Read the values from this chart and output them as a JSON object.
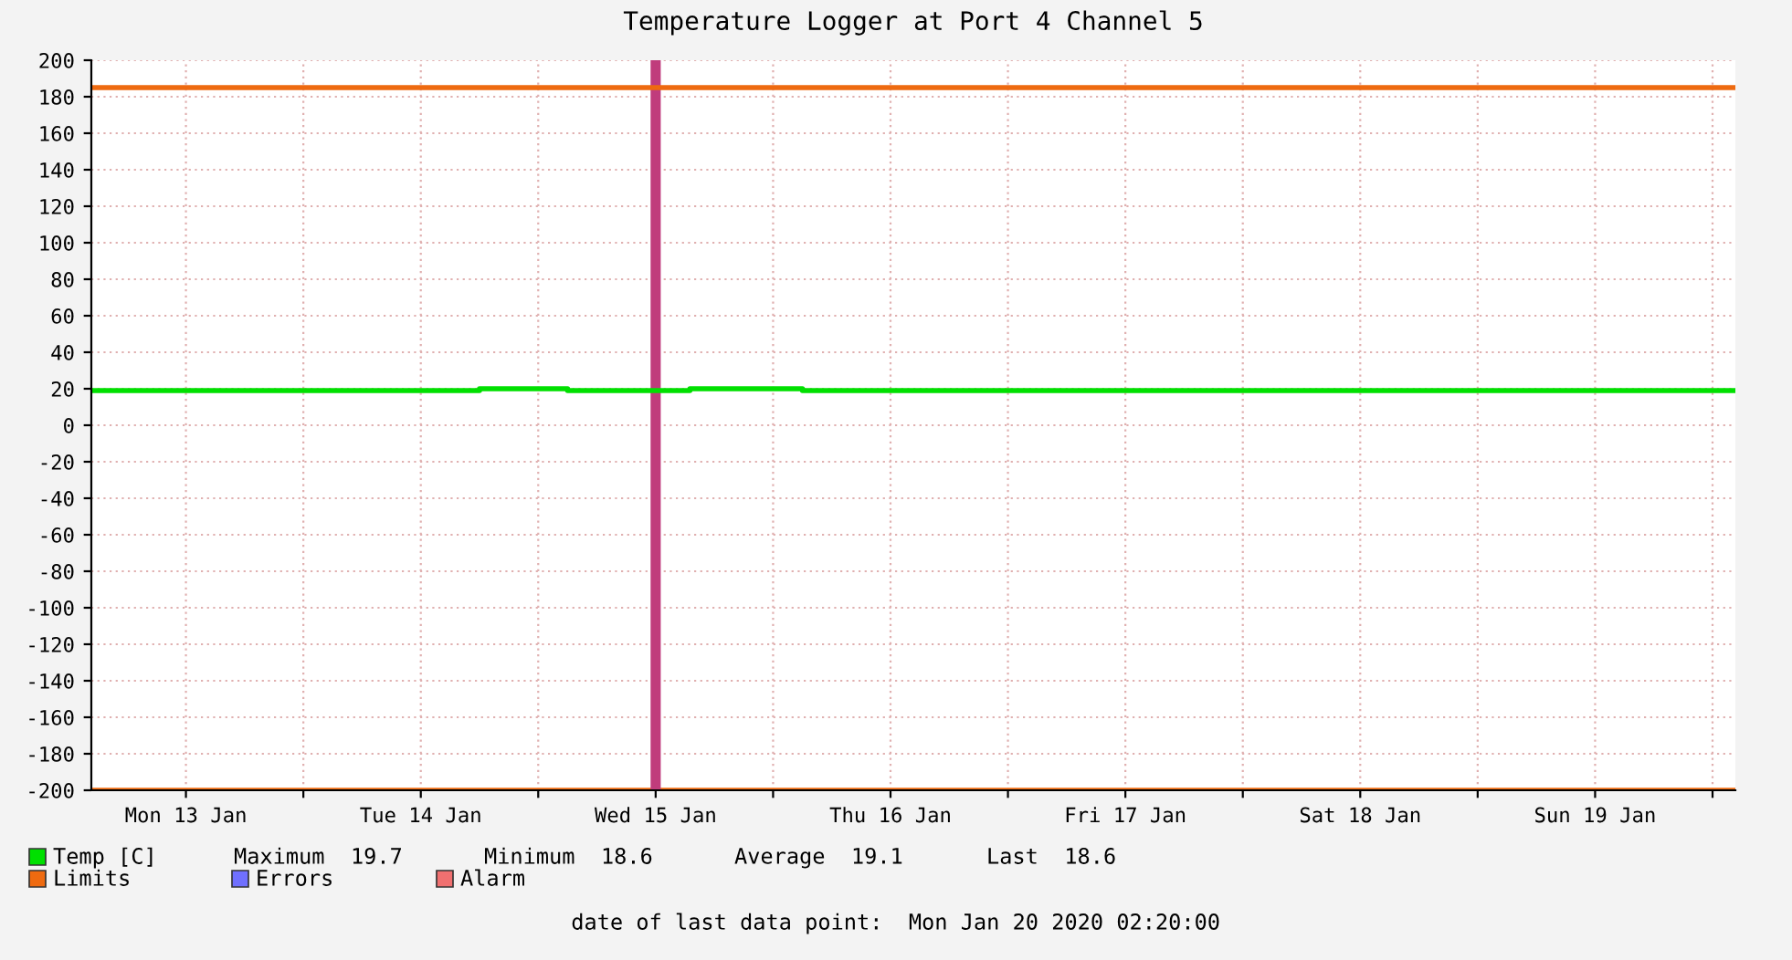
{
  "chart_data": {
    "type": "step",
    "title": "Temperature Logger at Port 4 Channel 5",
    "xlim": [
      "2020-01-13T02:20",
      "2020-01-20T02:20"
    ],
    "xticks": [
      {
        "value": "2020-01-13T12:00",
        "label": "Mon 13 Jan"
      },
      {
        "value": "2020-01-14T00:00",
        "label": null
      },
      {
        "value": "2020-01-14T12:00",
        "label": "Tue 14 Jan"
      },
      {
        "value": "2020-01-15T00:00",
        "label": null
      },
      {
        "value": "2020-01-15T12:00",
        "label": "Wed 15 Jan"
      },
      {
        "value": "2020-01-16T00:00",
        "label": null
      },
      {
        "value": "2020-01-16T12:00",
        "label": "Thu 16 Jan"
      },
      {
        "value": "2020-01-17T00:00",
        "label": null
      },
      {
        "value": "2020-01-17T12:00",
        "label": "Fri 17 Jan"
      },
      {
        "value": "2020-01-18T00:00",
        "label": null
      },
      {
        "value": "2020-01-18T12:00",
        "label": "Sat 18 Jan"
      },
      {
        "value": "2020-01-19T00:00",
        "label": null
      },
      {
        "value": "2020-01-19T12:00",
        "label": "Sun 19 Jan"
      },
      {
        "value": "2020-01-20T00:00",
        "label": null
      }
    ],
    "ylim": [
      -200,
      200
    ],
    "yticks": [
      -200,
      -180,
      -160,
      -140,
      -120,
      -100,
      -80,
      -60,
      -40,
      -20,
      0,
      20,
      40,
      60,
      80,
      100,
      120,
      140,
      160,
      180,
      200
    ],
    "grid": true,
    "series": [
      {
        "name": "Temp [C]",
        "color": "#00e000",
        "x": [
          "2020-01-13T02:20",
          "2020-01-14T18:00",
          "2020-01-15T03:00",
          "2020-01-15T15:30",
          "2020-01-16T03:00",
          "2020-01-20T02:20"
        ],
        "values": [
          19,
          20,
          19,
          20,
          19,
          19
        ]
      },
      {
        "name": "Limits",
        "type": "line",
        "color": "#ee6a10",
        "x": [
          "2020-01-13T02:20",
          "2020-01-20T02:20"
        ],
        "values": [
          185,
          185
        ]
      },
      {
        "name": "Errors",
        "type": "line",
        "color": "#7070ff"
      },
      {
        "name": "Alarm",
        "type": "line",
        "color": "#f07070"
      }
    ],
    "ref_lines": [
      {
        "axis": "y",
        "value": -200,
        "color": "#ee6a10"
      },
      {
        "axis": "x",
        "value": "2020-01-15T12:00",
        "color": "#c03c7c"
      }
    ],
    "legend": "bottom",
    "annotations": [
      "Maximum  19.7",
      "Minimum  18.6",
      "Average  19.1",
      "Last  18.6",
      "date of last data point:  Mon Jan 20 2020 02:20:00"
    ]
  }
}
